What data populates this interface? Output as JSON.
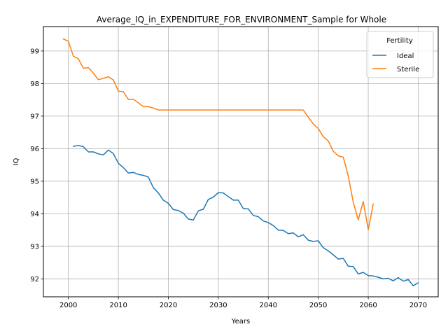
{
  "chart_data": {
    "type": "line",
    "title": "Average_IQ_in_EXPENDITURE_FOR_ENVIRONMENT_Sample for Whole",
    "xlabel": "Years",
    "ylabel": "IQ",
    "xlim": [
      1995,
      2074
    ],
    "ylim": [
      91.45,
      99.75
    ],
    "xticks": [
      2000,
      2010,
      2020,
      2030,
      2040,
      2050,
      2060,
      2070
    ],
    "yticks": [
      92,
      93,
      94,
      95,
      96,
      97,
      98,
      99
    ],
    "grid": true,
    "legend": {
      "title": "Fertility",
      "placement": "top-right"
    },
    "series": [
      {
        "name": "Ideal",
        "color": "#1f77b4",
        "x": [
          2001,
          2002,
          2003,
          2004,
          2005,
          2006,
          2007,
          2008,
          2009,
          2010,
          2011,
          2012,
          2013,
          2014,
          2015,
          2016,
          2017,
          2018,
          2019,
          2020,
          2021,
          2022,
          2023,
          2024,
          2025,
          2026,
          2027,
          2028,
          2029,
          2030,
          2031,
          2032,
          2033,
          2034,
          2035,
          2036,
          2037,
          2038,
          2039,
          2040,
          2041,
          2042,
          2043,
          2044,
          2045,
          2046,
          2047,
          2048,
          2049,
          2050,
          2051,
          2052,
          2053,
          2054,
          2055,
          2056,
          2057,
          2058,
          2059,
          2060,
          2061,
          2062,
          2063,
          2064,
          2065,
          2066,
          2067,
          2068,
          2069,
          2070
        ],
        "values": [
          96.07,
          96.1,
          96.06,
          95.9,
          95.9,
          95.84,
          95.81,
          95.96,
          95.85,
          95.55,
          95.42,
          95.25,
          95.27,
          95.21,
          95.18,
          95.13,
          94.8,
          94.64,
          94.42,
          94.32,
          94.13,
          94.1,
          94.02,
          93.84,
          93.81,
          94.09,
          94.14,
          94.44,
          94.51,
          94.65,
          94.64,
          94.53,
          94.42,
          94.42,
          94.16,
          94.15,
          93.95,
          93.91,
          93.78,
          93.73,
          93.64,
          93.5,
          93.49,
          93.39,
          93.41,
          93.29,
          93.36,
          93.19,
          93.15,
          93.17,
          92.96,
          92.86,
          92.74,
          92.61,
          92.63,
          92.39,
          92.38,
          92.15,
          92.2,
          92.1,
          92.09,
          92.05,
          92.0,
          92.02,
          91.94,
          92.04,
          91.93,
          91.98,
          91.79,
          91.88
        ]
      },
      {
        "name": "Sterile",
        "color": "#ff7f0e",
        "x": [
          1999,
          2000,
          2001,
          2002,
          2003,
          2004,
          2005,
          2006,
          2007,
          2008,
          2009,
          2010,
          2011,
          2012,
          2013,
          2014,
          2015,
          2016,
          2017,
          2018,
          2019,
          2020,
          2021,
          2022,
          2023,
          2024,
          2025,
          2026,
          2027,
          2028,
          2029,
          2030,
          2031,
          2032,
          2033,
          2034,
          2035,
          2036,
          2037,
          2038,
          2039,
          2040,
          2041,
          2042,
          2043,
          2044,
          2045,
          2046,
          2047,
          2048,
          2049,
          2050,
          2051,
          2052,
          2053,
          2054,
          2055,
          2056,
          2057,
          2058,
          2059,
          2060,
          2061
        ],
        "values": [
          99.37,
          99.3,
          98.84,
          98.76,
          98.47,
          98.49,
          98.32,
          98.12,
          98.16,
          98.21,
          98.11,
          97.77,
          97.75,
          97.51,
          97.52,
          97.41,
          97.29,
          97.29,
          97.25,
          97.19,
          97.19,
          97.19,
          97.19,
          97.19,
          97.19,
          97.19,
          97.19,
          97.19,
          97.19,
          97.19,
          97.19,
          97.19,
          97.19,
          97.19,
          97.19,
          97.19,
          97.19,
          97.19,
          97.19,
          97.19,
          97.19,
          97.19,
          97.19,
          97.19,
          97.19,
          97.19,
          97.19,
          97.19,
          97.19,
          96.97,
          96.76,
          96.62,
          96.37,
          96.24,
          95.92,
          95.78,
          95.74,
          95.16,
          94.36,
          93.81,
          94.38,
          93.51,
          94.3
        ]
      }
    ]
  }
}
